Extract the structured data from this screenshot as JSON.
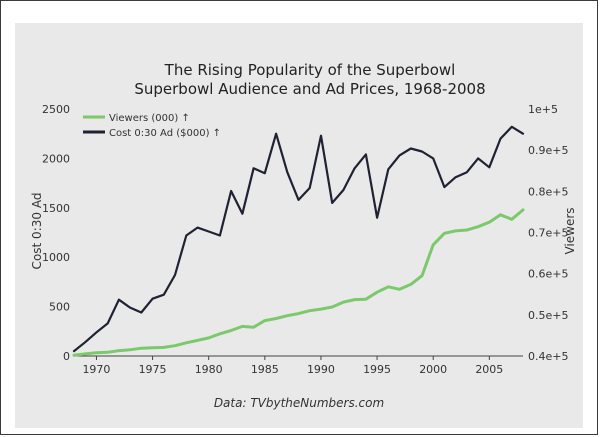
{
  "chart_data": {
    "type": "line",
    "title": "The Rising Popularity of the Superbowl",
    "subtitle": "Superbowl Audience and Ad Prices, 1968-2008",
    "ylabel_left": "Cost 0:30 Ad",
    "ylabel_right": "Viewers",
    "source": "Data: TVbytheNumbers.com",
    "xlim": [
      1968,
      2008
    ],
    "ylim_left": [
      0,
      2500
    ],
    "ylim_right": [
      40000,
      100000
    ],
    "x_ticks": [
      "1970",
      "1975",
      "1980",
      "1985",
      "1990",
      "1995",
      "2000",
      "2005"
    ],
    "y_left_ticks": [
      "0",
      "500",
      "1000",
      "1500",
      "2000",
      "2500"
    ],
    "y_right_ticks": [
      "0.4e+5",
      "0.5e+5",
      "0.6e+5",
      "0.7e+5",
      "0.8e+5",
      "0.9e+5",
      "1e+5"
    ],
    "legend_position": "top-left",
    "grid": false,
    "series": [
      {
        "name": "Viewers (000) ↑",
        "axis": "right",
        "color": "#7cc96b",
        "x": [
          1968,
          1969,
          1970,
          1971,
          1972,
          1973,
          1974,
          1975,
          1976,
          1977,
          1978,
          1979,
          1980,
          1981,
          1982,
          1983,
          1984,
          1985,
          1986,
          1987,
          1988,
          1989,
          1990,
          1991,
          1992,
          1993,
          1994,
          1995,
          1996,
          1997,
          1998,
          1999,
          2000,
          2001,
          2002,
          2003,
          2004,
          2005,
          2006,
          2007,
          2008
        ],
        "values": [
          40200,
          40500,
          40800,
          40900,
          41300,
          41500,
          41900,
          42000,
          42100,
          42500,
          43200,
          43800,
          44400,
          45400,
          46200,
          47200,
          47000,
          48600,
          49100,
          49800,
          50300,
          51000,
          51400,
          51900,
          53100,
          53700,
          53800,
          55500,
          56800,
          56200,
          57400,
          59500,
          67000,
          69800,
          70400,
          70600,
          71400,
          72500,
          74300,
          73200,
          75500
        ]
      },
      {
        "name": "Cost 0:30 Ad ($000) ↑",
        "axis": "left",
        "color": "#1f2233",
        "x": [
          1968,
          1969,
          1970,
          1971,
          1972,
          1973,
          1974,
          1975,
          1976,
          1977,
          1978,
          1979,
          1980,
          1981,
          1982,
          1983,
          1984,
          1985,
          1986,
          1987,
          1988,
          1989,
          1990,
          1991,
          1992,
          1993,
          1994,
          1995,
          1996,
          1997,
          1998,
          1999,
          2000,
          2001,
          2002,
          2003,
          2004,
          2005,
          2006,
          2007,
          2008
        ],
        "values": [
          50,
          140,
          240,
          330,
          570,
          490,
          440,
          580,
          620,
          820,
          1220,
          1300,
          1260,
          1220,
          1670,
          1440,
          1900,
          1850,
          2250,
          1860,
          1580,
          1700,
          2230,
          1550,
          1680,
          1900,
          2040,
          1400,
          1890,
          2030,
          2100,
          2070,
          2000,
          1710,
          1810,
          1860,
          2000,
          1910,
          2200,
          2320,
          2250
        ]
      }
    ]
  }
}
